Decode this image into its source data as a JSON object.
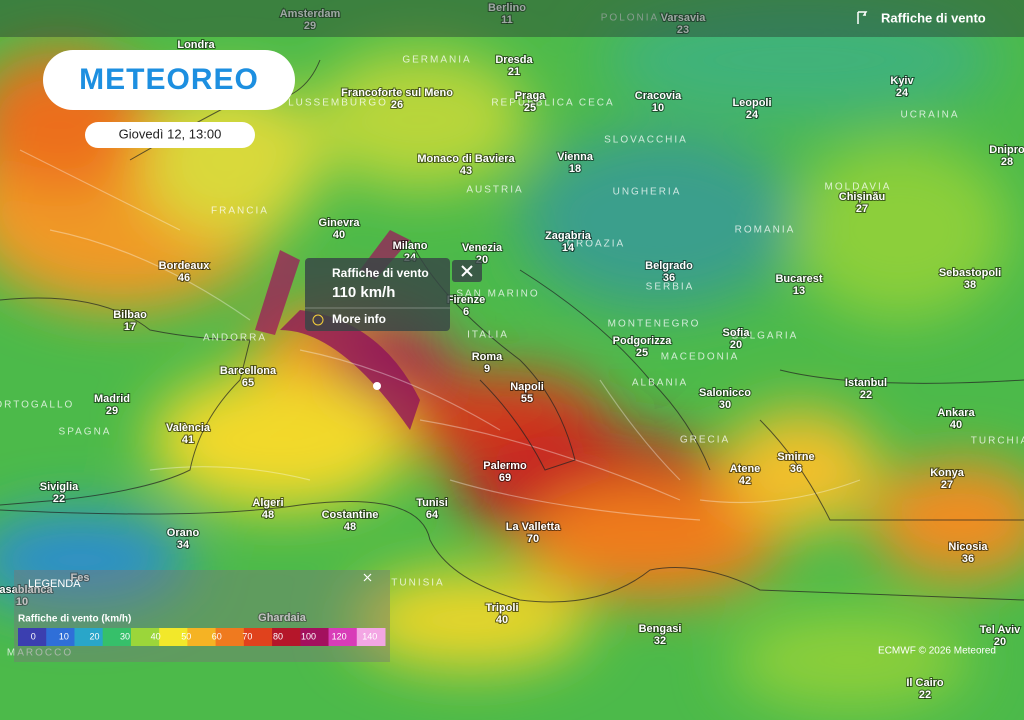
{
  "header": {
    "logo": "METEOREO",
    "date": "Giovedì 12, 13:00",
    "layer": "Raffiche di vento"
  },
  "popup": {
    "title": "Raffiche di vento",
    "value": "110 km/h",
    "link": "More info"
  },
  "legend": {
    "title": "LEGENDA",
    "subtitle": "Raffiche di vento (km/h)",
    "ticks": [
      0,
      10,
      20,
      30,
      40,
      50,
      60,
      70,
      80,
      100,
      120,
      140
    ],
    "colors": [
      "#3b3fb0",
      "#2f6fd8",
      "#29a6c9",
      "#36c06a",
      "#9bd63a",
      "#f2e82a",
      "#f5b324",
      "#ef7a1f",
      "#e0421d",
      "#b5162a",
      "#a3105e",
      "#d83cb8",
      "#f3a6e4"
    ]
  },
  "credit": "ECMWF © 2026 Meteored",
  "cities": [
    {
      "name": "Amsterdam",
      "value": 29
    },
    {
      "name": "Berlino",
      "value": 11
    },
    {
      "name": "Varsavia",
      "value": 23
    },
    {
      "name": "Londra"
    },
    {
      "name": "Dresda",
      "value": 21
    },
    {
      "name": "Praga",
      "value": 25
    },
    {
      "name": "Cracovia",
      "value": 10
    },
    {
      "name": "Leopoli",
      "value": 24
    },
    {
      "name": "Kyiv",
      "value": 24
    },
    {
      "name": "Francoforte sul Meno",
      "value": 26
    },
    {
      "name": "Dnipro",
      "value": 28
    },
    {
      "name": "Monaco di Baviera",
      "value": 43
    },
    {
      "name": "Vienna",
      "value": 18
    },
    {
      "name": "Chișinău",
      "value": 27
    },
    {
      "name": "Ginevra",
      "value": 40
    },
    {
      "name": "Milano",
      "value": 24
    },
    {
      "name": "Venezia",
      "value": 20
    },
    {
      "name": "Zagabria",
      "value": 14
    },
    {
      "name": "Bordeaux",
      "value": 46
    },
    {
      "name": "Belgrado",
      "value": 36
    },
    {
      "name": "Bucarest",
      "value": 13
    },
    {
      "name": "Sebastopoli",
      "value": 38
    },
    {
      "name": "Bilbao",
      "value": 17
    },
    {
      "name": "Firenze",
      "value": 6
    },
    {
      "name": "Roma",
      "value": 9
    },
    {
      "name": "Podgorizza",
      "value": 25
    },
    {
      "name": "Sofia",
      "value": 20
    },
    {
      "name": "Barcellona",
      "value": 65
    },
    {
      "name": "Napoli",
      "value": 55
    },
    {
      "name": "Istanbul",
      "value": 22
    },
    {
      "name": "Madrid",
      "value": 29
    },
    {
      "name": "Salonicco",
      "value": 30
    },
    {
      "name": "Ankara",
      "value": 40
    },
    {
      "name": "València",
      "value": 41
    },
    {
      "name": "Palermo",
      "value": 69
    },
    {
      "name": "Smirne",
      "value": 36
    },
    {
      "name": "Siviglia",
      "value": 22
    },
    {
      "name": "Atene",
      "value": 42
    },
    {
      "name": "Konya",
      "value": 27
    },
    {
      "name": "Algeri",
      "value": 48
    },
    {
      "name": "Costantine",
      "value": 48
    },
    {
      "name": "Tunisi",
      "value": 64
    },
    {
      "name": "La Valletta",
      "value": 70
    },
    {
      "name": "Orano",
      "value": 34
    },
    {
      "name": "Nicosia",
      "value": 36
    },
    {
      "name": "Tripoli",
      "value": 40
    },
    {
      "name": "Bengasi",
      "value": 32
    },
    {
      "name": "Tel Aviv",
      "value": 20
    },
    {
      "name": "Il Cairo",
      "value": 22
    },
    {
      "name": "Ghardaia"
    },
    {
      "name": "Fes"
    },
    {
      "name": "Casablanca",
      "value": 10
    }
  ],
  "countries": [
    "FRANCIA",
    "GERMANIA",
    "AUSTRIA",
    "ITALIA",
    "SPAGNA",
    "ROMANIA",
    "BULGARIA",
    "UCRAINA",
    "SLOVACCHIA",
    "UNGHERIA",
    "SERBIA",
    "MONTENEGRO",
    "MACEDONIA",
    "ALBANIA",
    "CROAZIA",
    "MOLDAVIA",
    "GRECIA",
    "TURCHIA",
    "TUNISIA",
    "POLONIA",
    "ANDORRA",
    "SAN MARINO",
    "LUSSEMBURGO",
    "REPUBBLICA CECA",
    "PORTOGALLO",
    "MAROCCO"
  ]
}
